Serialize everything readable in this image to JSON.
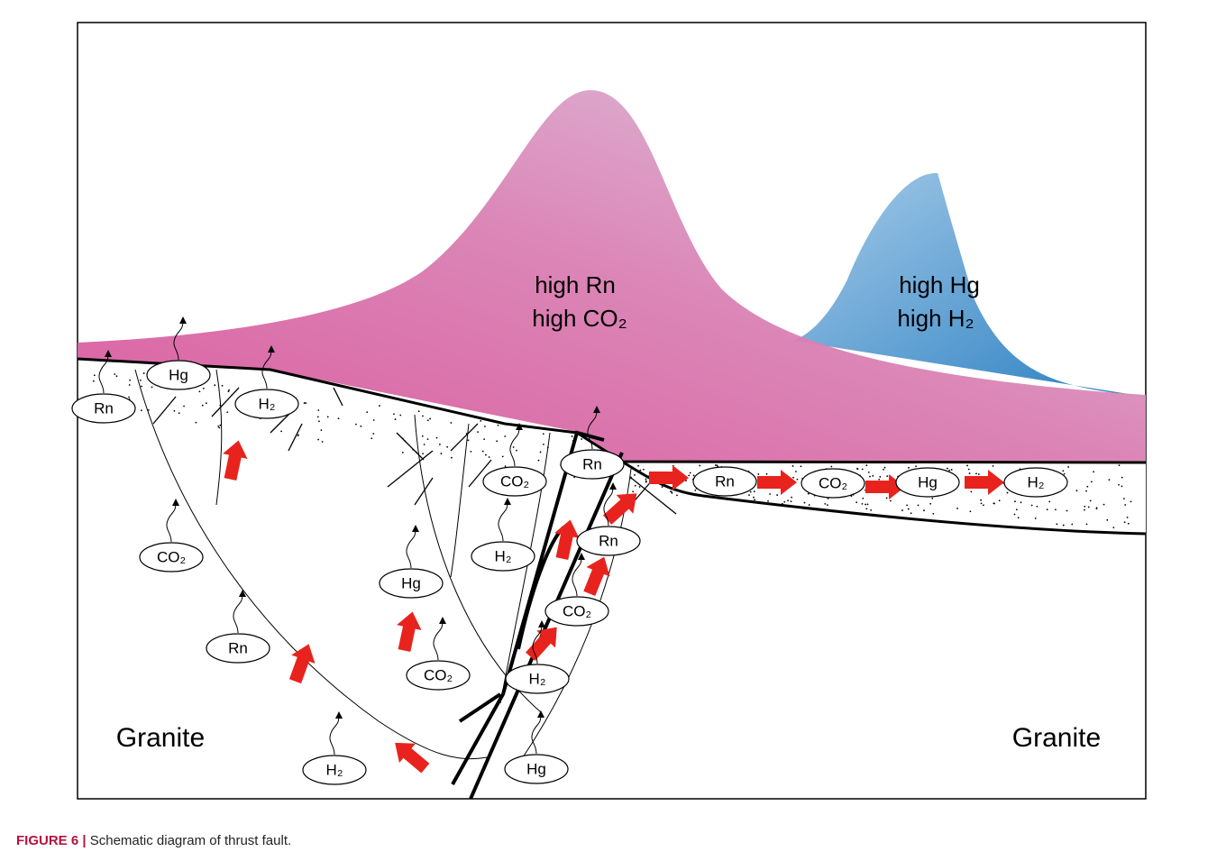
{
  "diagram": {
    "annotations": [
      "high Rn",
      "high CO₂",
      "high Hg",
      "high H₂"
    ],
    "rock_labels": [
      "Granite",
      "Granite"
    ],
    "gas_labels": [
      "Rn",
      "Hg",
      "H₂",
      "CO₂",
      "Rn",
      "H₂",
      "Hg",
      "CO₂",
      "CO₂",
      "H₂",
      "Rn",
      "Rn",
      "CO₂",
      "H₂",
      "Hg",
      "Rn",
      "CO₂",
      "Hg",
      "H₂"
    ],
    "caption": {
      "label": "FIGURE 6 |",
      "text": "Schematic diagram of thrust fault."
    }
  }
}
